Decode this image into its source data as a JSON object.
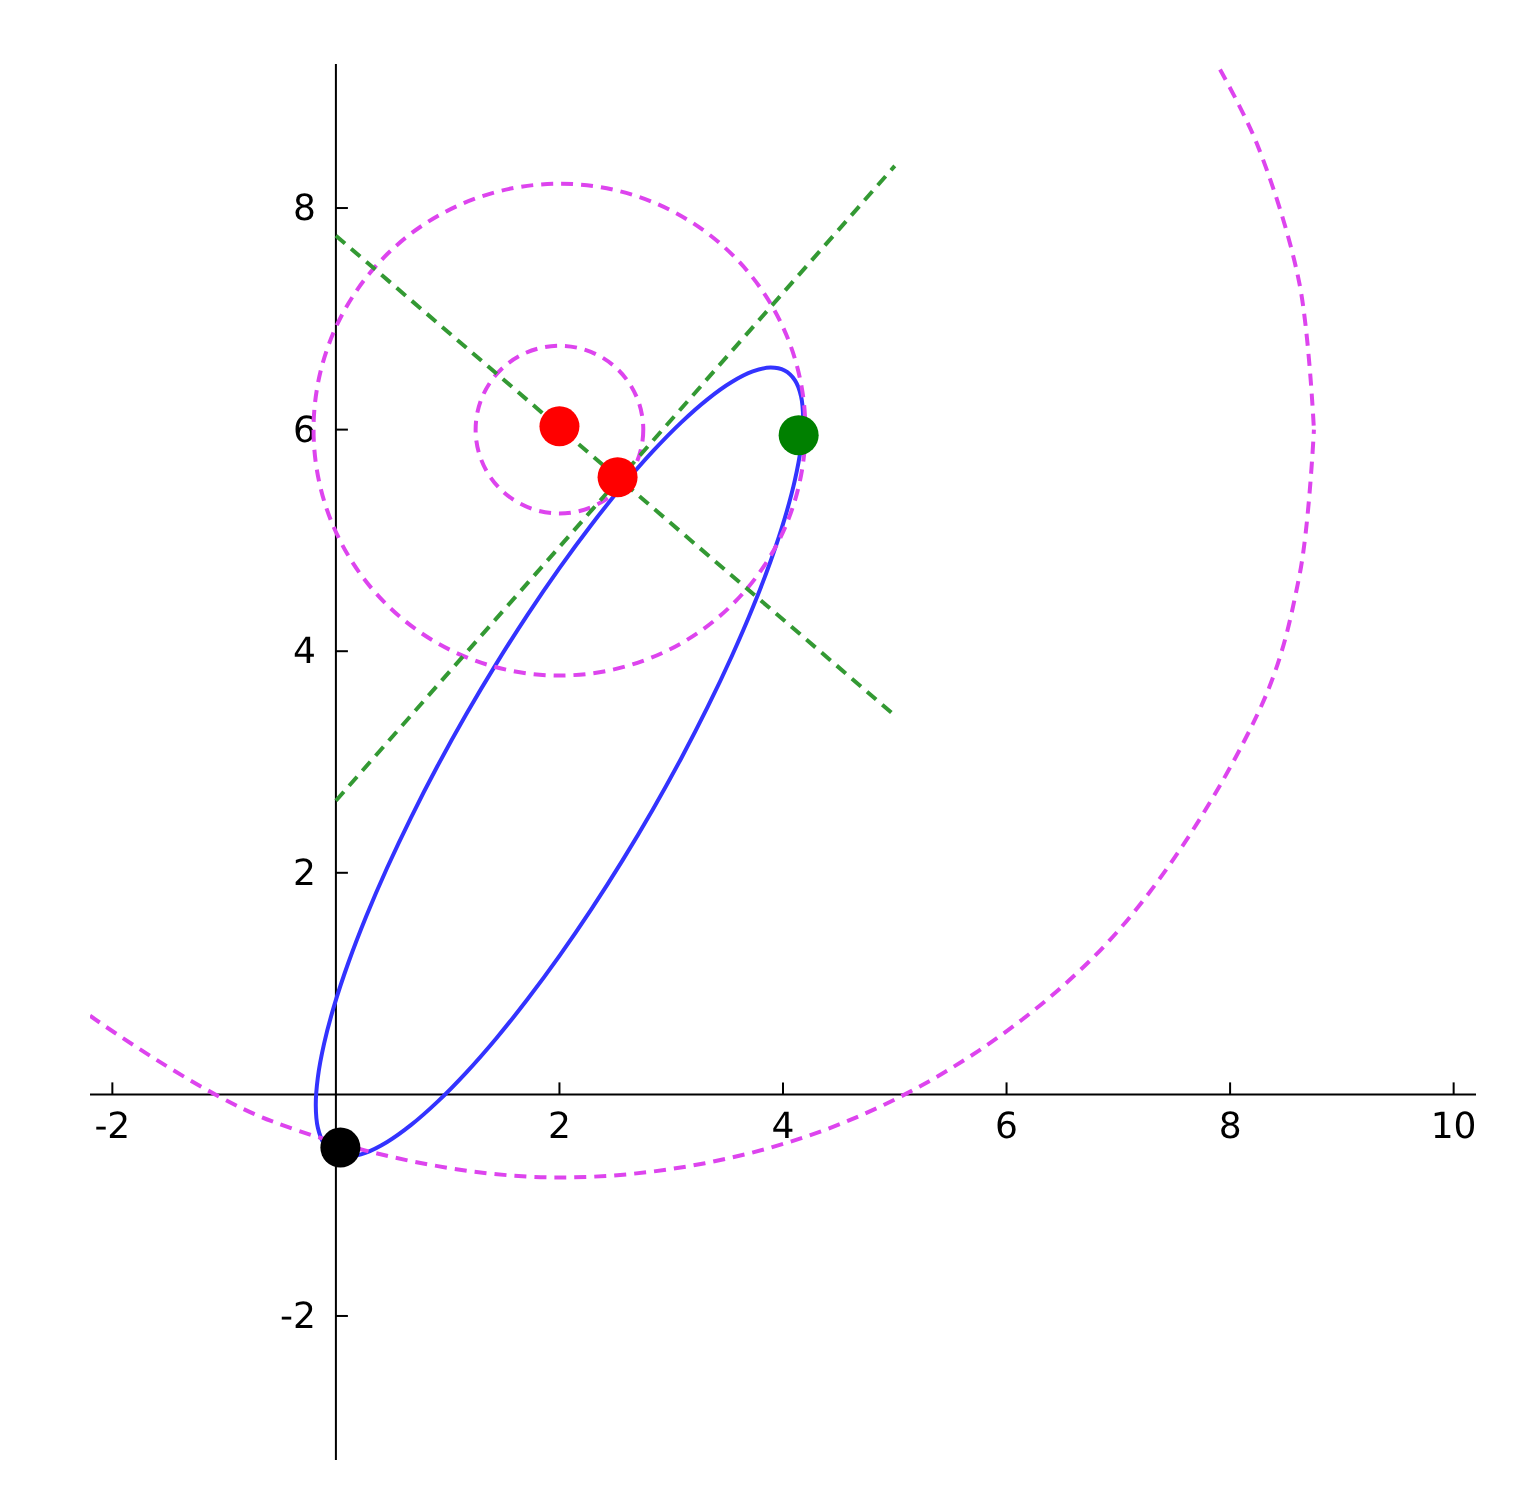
{
  "chart_data": {
    "type": "line",
    "xlim": [
      -2.2,
      10.2
    ],
    "ylim": [
      -3.3,
      9.3
    ],
    "xticks": [
      -2,
      2,
      4,
      6,
      8,
      10
    ],
    "yticks": [
      -2,
      2,
      4,
      6,
      8
    ],
    "grid": false,
    "series": [
      {
        "color": "#dd44ee",
        "line_style": "dashed",
        "marker": "none",
        "x": [
          7.91,
          8.24,
          8.62,
          8.75
        ],
        "values": [
          9.25,
          8.58,
          7.32,
          6
        ]
      },
      {
        "color": "#dd44ee",
        "line_style": "dashed",
        "marker": "none",
        "x": [
          -2.2,
          -0.58,
          2,
          4.58,
          6.77,
          8.24,
          8.62,
          8.75
        ],
        "values": [
          0.71,
          -0.24,
          -0.75,
          -0.24,
          1.23,
          3.42,
          4.68,
          6
        ]
      },
      {
        "color": "#339933",
        "line_style": "dashed",
        "marker": "none",
        "x": [
          0,
          5
        ],
        "values": [
          2.65,
          8.38
        ]
      },
      {
        "color": "#339933",
        "line_style": "dashed",
        "marker": "none",
        "x": [
          0,
          5
        ],
        "values": [
          7.75,
          3.42
        ]
      },
      {
        "type": "scatter",
        "color": "#ff0000",
        "marker": "circle",
        "x": [
          2,
          2.52
        ],
        "values": [
          6.03,
          5.57
        ]
      },
      {
        "type": "scatter",
        "color": "#008000",
        "marker": "circle",
        "x": [
          4.14
        ],
        "values": [
          5.95
        ]
      },
      {
        "type": "scatter",
        "color": "#000000",
        "marker": "circle",
        "x": [
          0.04
        ],
        "values": [
          -0.48
        ]
      }
    ]
  }
}
